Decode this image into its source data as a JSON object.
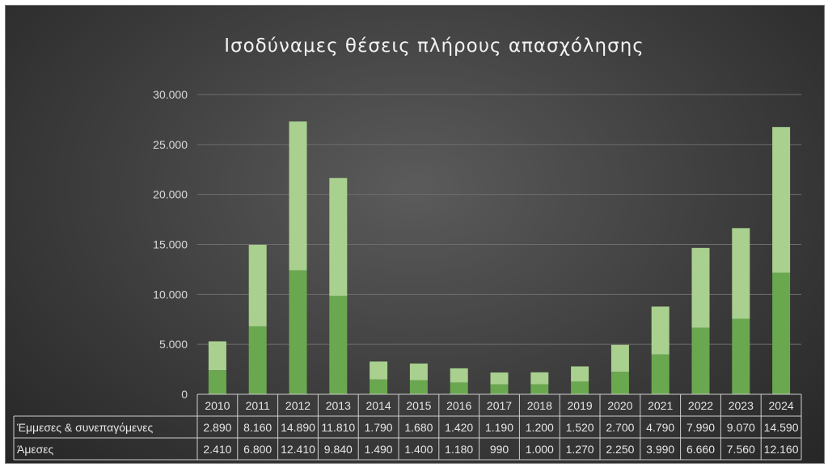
{
  "chart_data": {
    "type": "bar",
    "stacked": true,
    "title": "Ισοδύναμες θέσεις πλήρους απασχόλησης",
    "categories": [
      "2010",
      "2011",
      "2012",
      "2013",
      "2014",
      "2015",
      "2016",
      "2017",
      "2018",
      "2019",
      "2020",
      "2021",
      "2022",
      "2023",
      "2024"
    ],
    "series": [
      {
        "name": "Άμεσες",
        "color": "#6aa84f",
        "values": [
          2410,
          6800,
          12410,
          9840,
          1490,
          1400,
          1180,
          990,
          1000,
          1270,
          2250,
          3990,
          6660,
          7560,
          12160
        ],
        "labels": [
          "2.410",
          "6.800",
          "12.410",
          "9.840",
          "1.490",
          "1.400",
          "1.180",
          "990",
          "1.000",
          "1.270",
          "2.250",
          "3.990",
          "6.660",
          "7.560",
          "12.160"
        ]
      },
      {
        "name": "Έμμεσες & συνεπαγόμενες",
        "color": "#a9d08e",
        "values": [
          2890,
          8160,
          14890,
          11810,
          1790,
          1680,
          1420,
          1190,
          1200,
          1520,
          2700,
          4790,
          7990,
          9070,
          14590
        ],
        "labels": [
          "2.890",
          "8.160",
          "14.890",
          "11.810",
          "1.790",
          "1.680",
          "1.420",
          "1.190",
          "1.200",
          "1.520",
          "2.700",
          "4.790",
          "7.990",
          "9.070",
          "14.590"
        ]
      }
    ],
    "ylim": [
      0,
      30000
    ],
    "yticks": [
      0,
      5000,
      10000,
      15000,
      20000,
      25000,
      30000
    ],
    "ytick_labels": [
      "0",
      "5.000",
      "10.000",
      "15.000",
      "20.000",
      "25.000",
      "30.000"
    ],
    "grid": true,
    "legend": "data-table"
  }
}
